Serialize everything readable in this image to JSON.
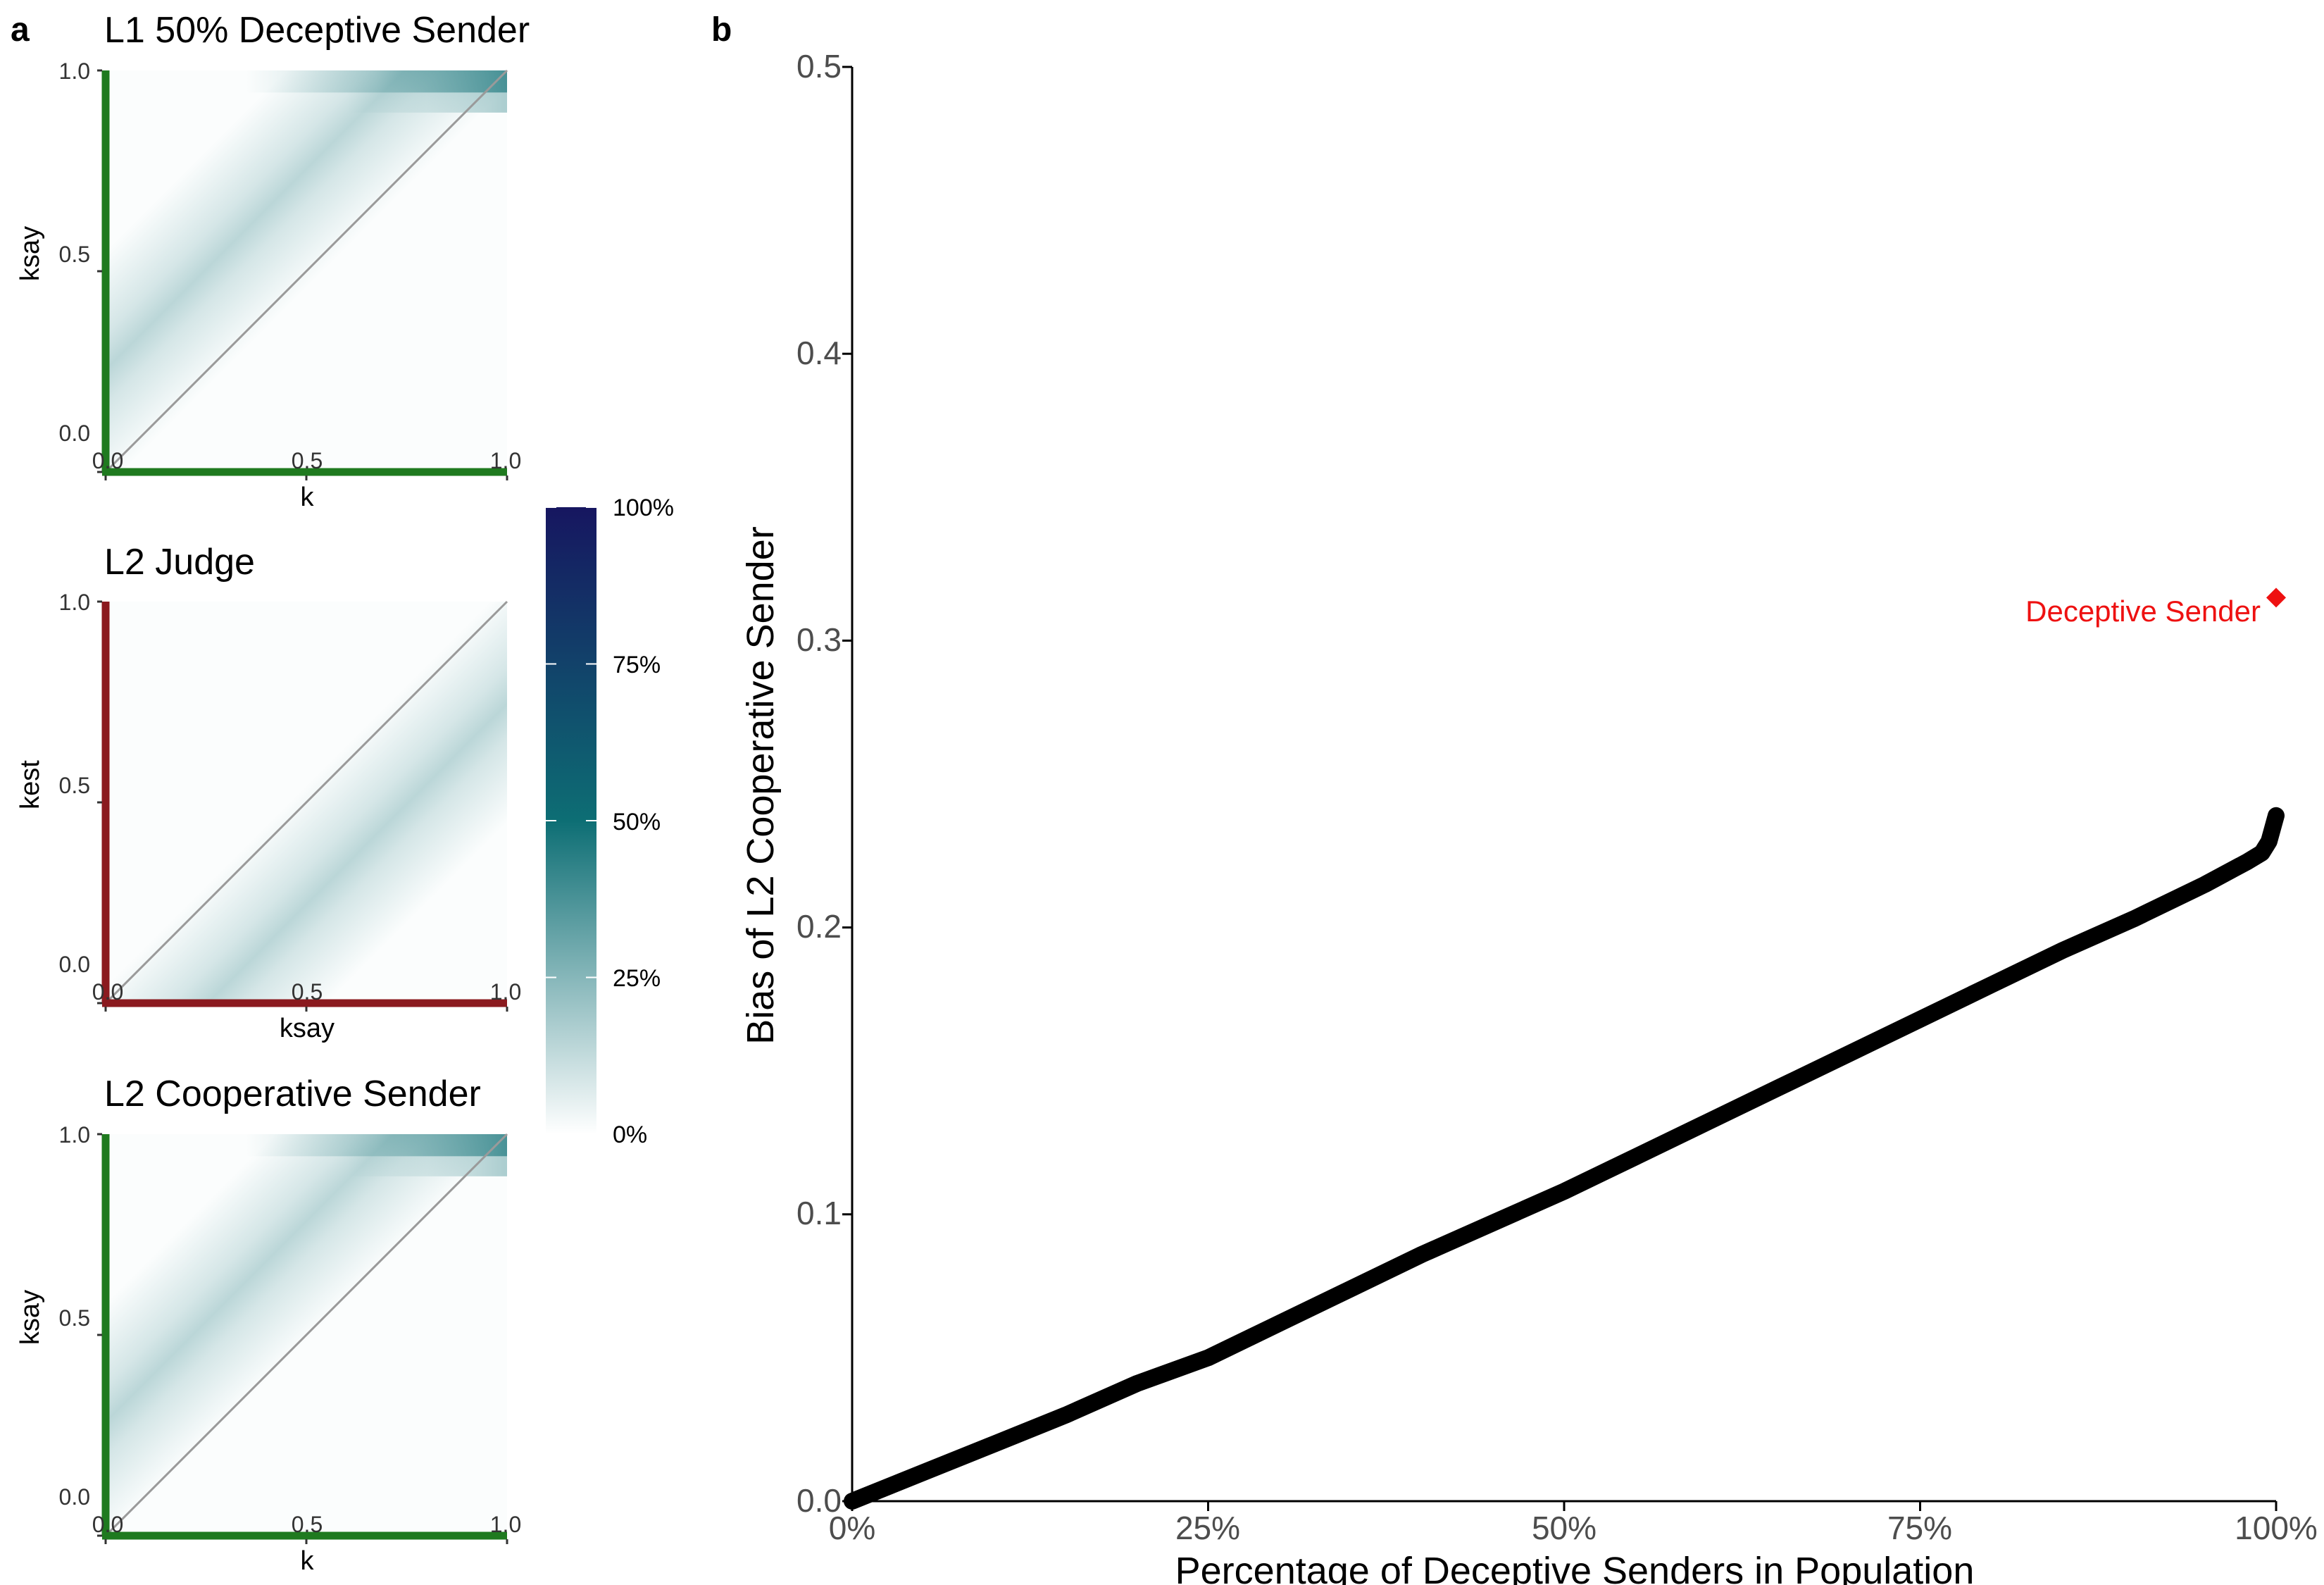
{
  "panel_a_letter": "a",
  "panel_b_letter": "b",
  "colors": {
    "green": "#1f7a1f",
    "red": "#8b1a1f",
    "heat_low": "#ffffff",
    "heat_mid": "#0d6e74",
    "heat_high": "#161660",
    "curve": "#000000",
    "annotation": "#ee1111",
    "diagonal": "#9a9a9a"
  },
  "chart_data": [
    {
      "type": "heatmap",
      "title": "L1 50% Deceptive Sender",
      "xlabel": "k",
      "ylabel": "ksay",
      "xlim": [
        0,
        1
      ],
      "ylim": [
        0,
        1
      ],
      "xticks": [
        "0.0",
        "0.5",
        "1.0"
      ],
      "yticks": [
        "0.0",
        "0.5",
        "1.0"
      ],
      "axis_color": "green",
      "identity_line": true,
      "ridge_offset": 0.18,
      "corner_hotspot": true
    },
    {
      "type": "heatmap",
      "title": "L2 Judge",
      "xlabel": "ksay",
      "ylabel": "kest",
      "xlim": [
        0,
        1
      ],
      "ylim": [
        0,
        1
      ],
      "xticks": [
        "0.0",
        "0.5",
        "1.0"
      ],
      "yticks": [
        "0.0",
        "0.5",
        "1.0"
      ],
      "axis_color": "red",
      "identity_line": true,
      "ridge_offset": -0.18,
      "corner_hotspot": false
    },
    {
      "type": "heatmap",
      "title": "L2 Cooperative Sender",
      "xlabel": "k",
      "ylabel": "ksay",
      "xlim": [
        0,
        1
      ],
      "ylim": [
        0,
        1
      ],
      "xticks": [
        "0.0",
        "0.5",
        "1.0"
      ],
      "yticks": [
        "0.0",
        "0.5",
        "1.0"
      ],
      "axis_color": "green",
      "identity_line": true,
      "ridge_offset": 0.2,
      "corner_hotspot": true
    },
    {
      "type": "colorbar",
      "range": [
        0,
        100
      ],
      "labels": [
        "100%",
        "75%",
        "50%",
        "25%",
        "0%"
      ],
      "label_values": [
        100,
        75,
        50,
        25,
        0
      ]
    },
    {
      "type": "line",
      "xlabel": "Percentage of Deceptive Senders in Population",
      "ylabel": "Bias of L2 Cooperative Sender",
      "xlim": [
        0,
        100
      ],
      "ylim": [
        0,
        0.5
      ],
      "xticks": [
        "0%",
        "25%",
        "50%",
        "75%",
        "100%"
      ],
      "xtick_values": [
        0,
        25,
        50,
        75,
        100
      ],
      "yticks": [
        "0.0",
        "0.1",
        "0.2",
        "0.3",
        "0.4",
        "0.5"
      ],
      "ytick_values": [
        0,
        0.1,
        0.2,
        0.3,
        0.4,
        0.5
      ],
      "x": [
        0,
        5,
        10,
        15,
        20,
        25,
        30,
        35,
        40,
        45,
        50,
        55,
        60,
        65,
        70,
        75,
        80,
        85,
        90,
        95,
        98,
        99,
        99.5,
        100
      ],
      "y": [
        0,
        0.01,
        0.02,
        0.03,
        0.041,
        0.05,
        0.062,
        0.074,
        0.086,
        0.097,
        0.108,
        0.12,
        0.132,
        0.144,
        0.156,
        0.168,
        0.18,
        0.192,
        0.203,
        0.215,
        0.223,
        0.226,
        0.23,
        0.239
      ],
      "point": {
        "x": 100,
        "y": 0.315,
        "label": "Deceptive Sender",
        "marker": "diamond"
      }
    }
  ]
}
